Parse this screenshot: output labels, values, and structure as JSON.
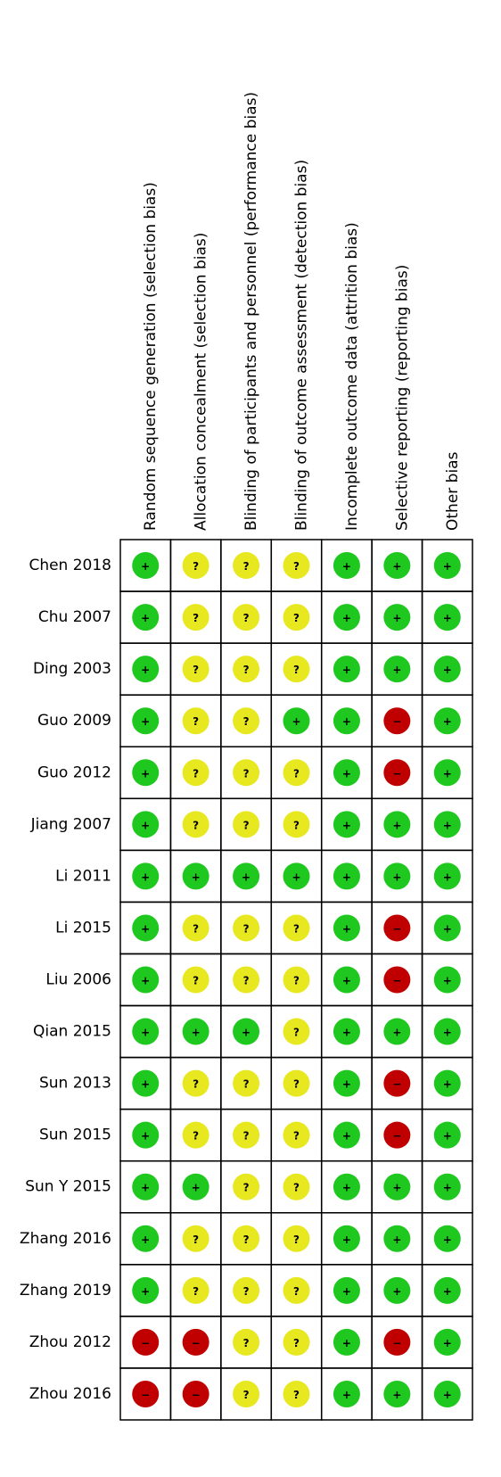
{
  "domains": [
    "Random sequence generation (selection bias)",
    "Allocation concealment (selection bias)",
    "Blinding of participants and personnel (performance bias)",
    "Blinding of outcome assessment (detection bias)",
    "Incomplete outcome data (attrition bias)",
    "Selective reporting (reporting bias)",
    "Other bias"
  ],
  "studies": [
    "Chen 2018",
    "Chu 2007",
    "Ding 2003",
    "Guo 2009",
    "Guo 2012",
    "Jiang 2007",
    "Li 2011",
    "Li 2015",
    "Liu 2006",
    "Qian 2015",
    "Sun 2013",
    "Sun 2015",
    "Sun Y 2015",
    "Zhang 2016",
    "Zhang 2019",
    "Zhou 2012",
    "Zhou 2016"
  ],
  "judgments": [
    [
      "+",
      "?",
      "?",
      "?",
      "+",
      "+",
      "+"
    ],
    [
      "+",
      "?",
      "?",
      "?",
      "+",
      "+",
      "+"
    ],
    [
      "+",
      "?",
      "?",
      "?",
      "+",
      "+",
      "+"
    ],
    [
      "+",
      "?",
      "?",
      "+",
      "+",
      "−",
      "+"
    ],
    [
      "+",
      "?",
      "?",
      "?",
      "+",
      "−",
      "+"
    ],
    [
      "+",
      "?",
      "?",
      "?",
      "+",
      "+",
      "+"
    ],
    [
      "+",
      "+",
      "+",
      "+",
      "+",
      "+",
      "+"
    ],
    [
      "+",
      "?",
      "?",
      "?",
      "+",
      "−",
      "+"
    ],
    [
      "+",
      "?",
      "?",
      "?",
      "+",
      "−",
      "+"
    ],
    [
      "+",
      "+",
      "+",
      "?",
      "+",
      "+",
      "+"
    ],
    [
      "+",
      "?",
      "?",
      "?",
      "+",
      "−",
      "+"
    ],
    [
      "+",
      "?",
      "?",
      "?",
      "+",
      "−",
      "+"
    ],
    [
      "+",
      "+",
      "?",
      "?",
      "+",
      "+",
      "+"
    ],
    [
      "+",
      "?",
      "?",
      "?",
      "+",
      "+",
      "+"
    ],
    [
      "+",
      "?",
      "?",
      "?",
      "+",
      "+",
      "+"
    ],
    [
      "−",
      "−",
      "?",
      "?",
      "+",
      "−",
      "+"
    ],
    [
      "−",
      "−",
      "?",
      "?",
      "+",
      "+",
      "+"
    ]
  ],
  "colors": {
    "+": "#1ec81e",
    "?": "#e8e820",
    "−": "#c00000"
  }
}
